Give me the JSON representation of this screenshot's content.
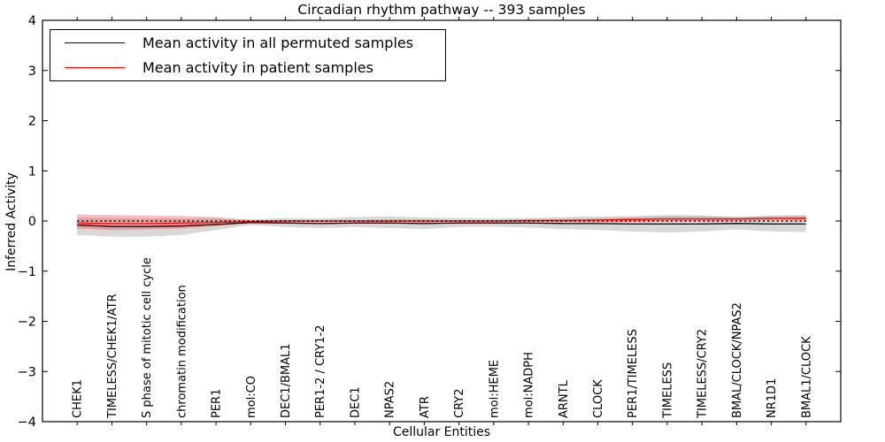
{
  "chart_data": {
    "type": "line",
    "title": "Circadian rhythm pathway -- 393 samples",
    "xlabel": "Cellular Entities",
    "ylabel": "Inferred Activity",
    "ylim": [
      -4,
      4
    ],
    "xlim": [
      -1,
      22
    ],
    "yticks": [
      -4,
      -3,
      -2,
      -1,
      0,
      1,
      2,
      3,
      4
    ],
    "grid": false,
    "legend_position": "upper left",
    "categories": [
      "CHEK1",
      "TIMELESS/CHEK1/ATR",
      "S phase of mitotic cell cycle",
      "chromatin modification",
      "PER1",
      "mol:CO",
      "DEC1/BMAL1",
      "PER1-2 / CRY1-2",
      "DEC1",
      "NPAS2",
      "ATR",
      "CRY2",
      "mol:HEME",
      "mol:NADPH",
      "ARNTL",
      "CLOCK",
      "PER1/TIMELESS",
      "TIMELESS",
      "TIMELESS/CRY2",
      "BMAL/CLOCK/NPAS2",
      "NR1D1",
      "BMAL1/CLOCK"
    ],
    "series": [
      {
        "name": "Mean activity in all permuted samples",
        "color": "#000000",
        "band_color": "#999999",
        "band_opacity": 0.38,
        "values": [
          -0.08,
          -0.11,
          -0.11,
          -0.1,
          -0.07,
          -0.03,
          -0.04,
          -0.05,
          -0.04,
          -0.04,
          -0.05,
          -0.04,
          -0.04,
          -0.04,
          -0.05,
          -0.05,
          -0.06,
          -0.06,
          -0.06,
          -0.05,
          -0.06,
          -0.06
        ],
        "band_upper": [
          0.07,
          0.06,
          0.05,
          0.05,
          0.05,
          0.03,
          0.06,
          0.05,
          0.08,
          0.09,
          0.07,
          0.06,
          0.05,
          0.06,
          0.08,
          0.09,
          0.1,
          0.12,
          0.11,
          0.08,
          0.11,
          0.12
        ],
        "band_lower": [
          -0.28,
          -0.31,
          -0.31,
          -0.28,
          -0.18,
          -0.08,
          -0.12,
          -0.14,
          -0.12,
          -0.14,
          -0.16,
          -0.12,
          -0.11,
          -0.13,
          -0.16,
          -0.18,
          -0.21,
          -0.23,
          -0.21,
          -0.17,
          -0.21,
          -0.22
        ]
      },
      {
        "name": "Mean activity in patient samples",
        "color": "#ff0000",
        "band_color": "#ff2222",
        "band_opacity": 0.3,
        "values": [
          -0.04,
          -0.05,
          -0.05,
          -0.04,
          -0.03,
          -0.01,
          0.0,
          0.0,
          0.0,
          0.0,
          0.0,
          0.0,
          0.0,
          0.01,
          0.01,
          0.02,
          0.03,
          0.04,
          0.04,
          0.04,
          0.05,
          0.05
        ],
        "band_upper": [
          0.13,
          0.12,
          0.11,
          0.1,
          0.08,
          0.02,
          0.02,
          0.02,
          0.02,
          0.03,
          0.03,
          0.02,
          0.02,
          0.03,
          0.04,
          0.05,
          0.07,
          0.09,
          0.09,
          0.08,
          0.09,
          0.1
        ],
        "band_lower": [
          -0.15,
          -0.18,
          -0.17,
          -0.15,
          -0.1,
          -0.04,
          -0.03,
          -0.02,
          -0.02,
          -0.02,
          -0.03,
          -0.02,
          -0.02,
          -0.02,
          -0.02,
          -0.02,
          -0.01,
          0.0,
          0.0,
          0.0,
          0.01,
          0.01
        ]
      }
    ],
    "reference_line": {
      "value": 0.0,
      "style": "dotted",
      "color": "#000000"
    }
  }
}
